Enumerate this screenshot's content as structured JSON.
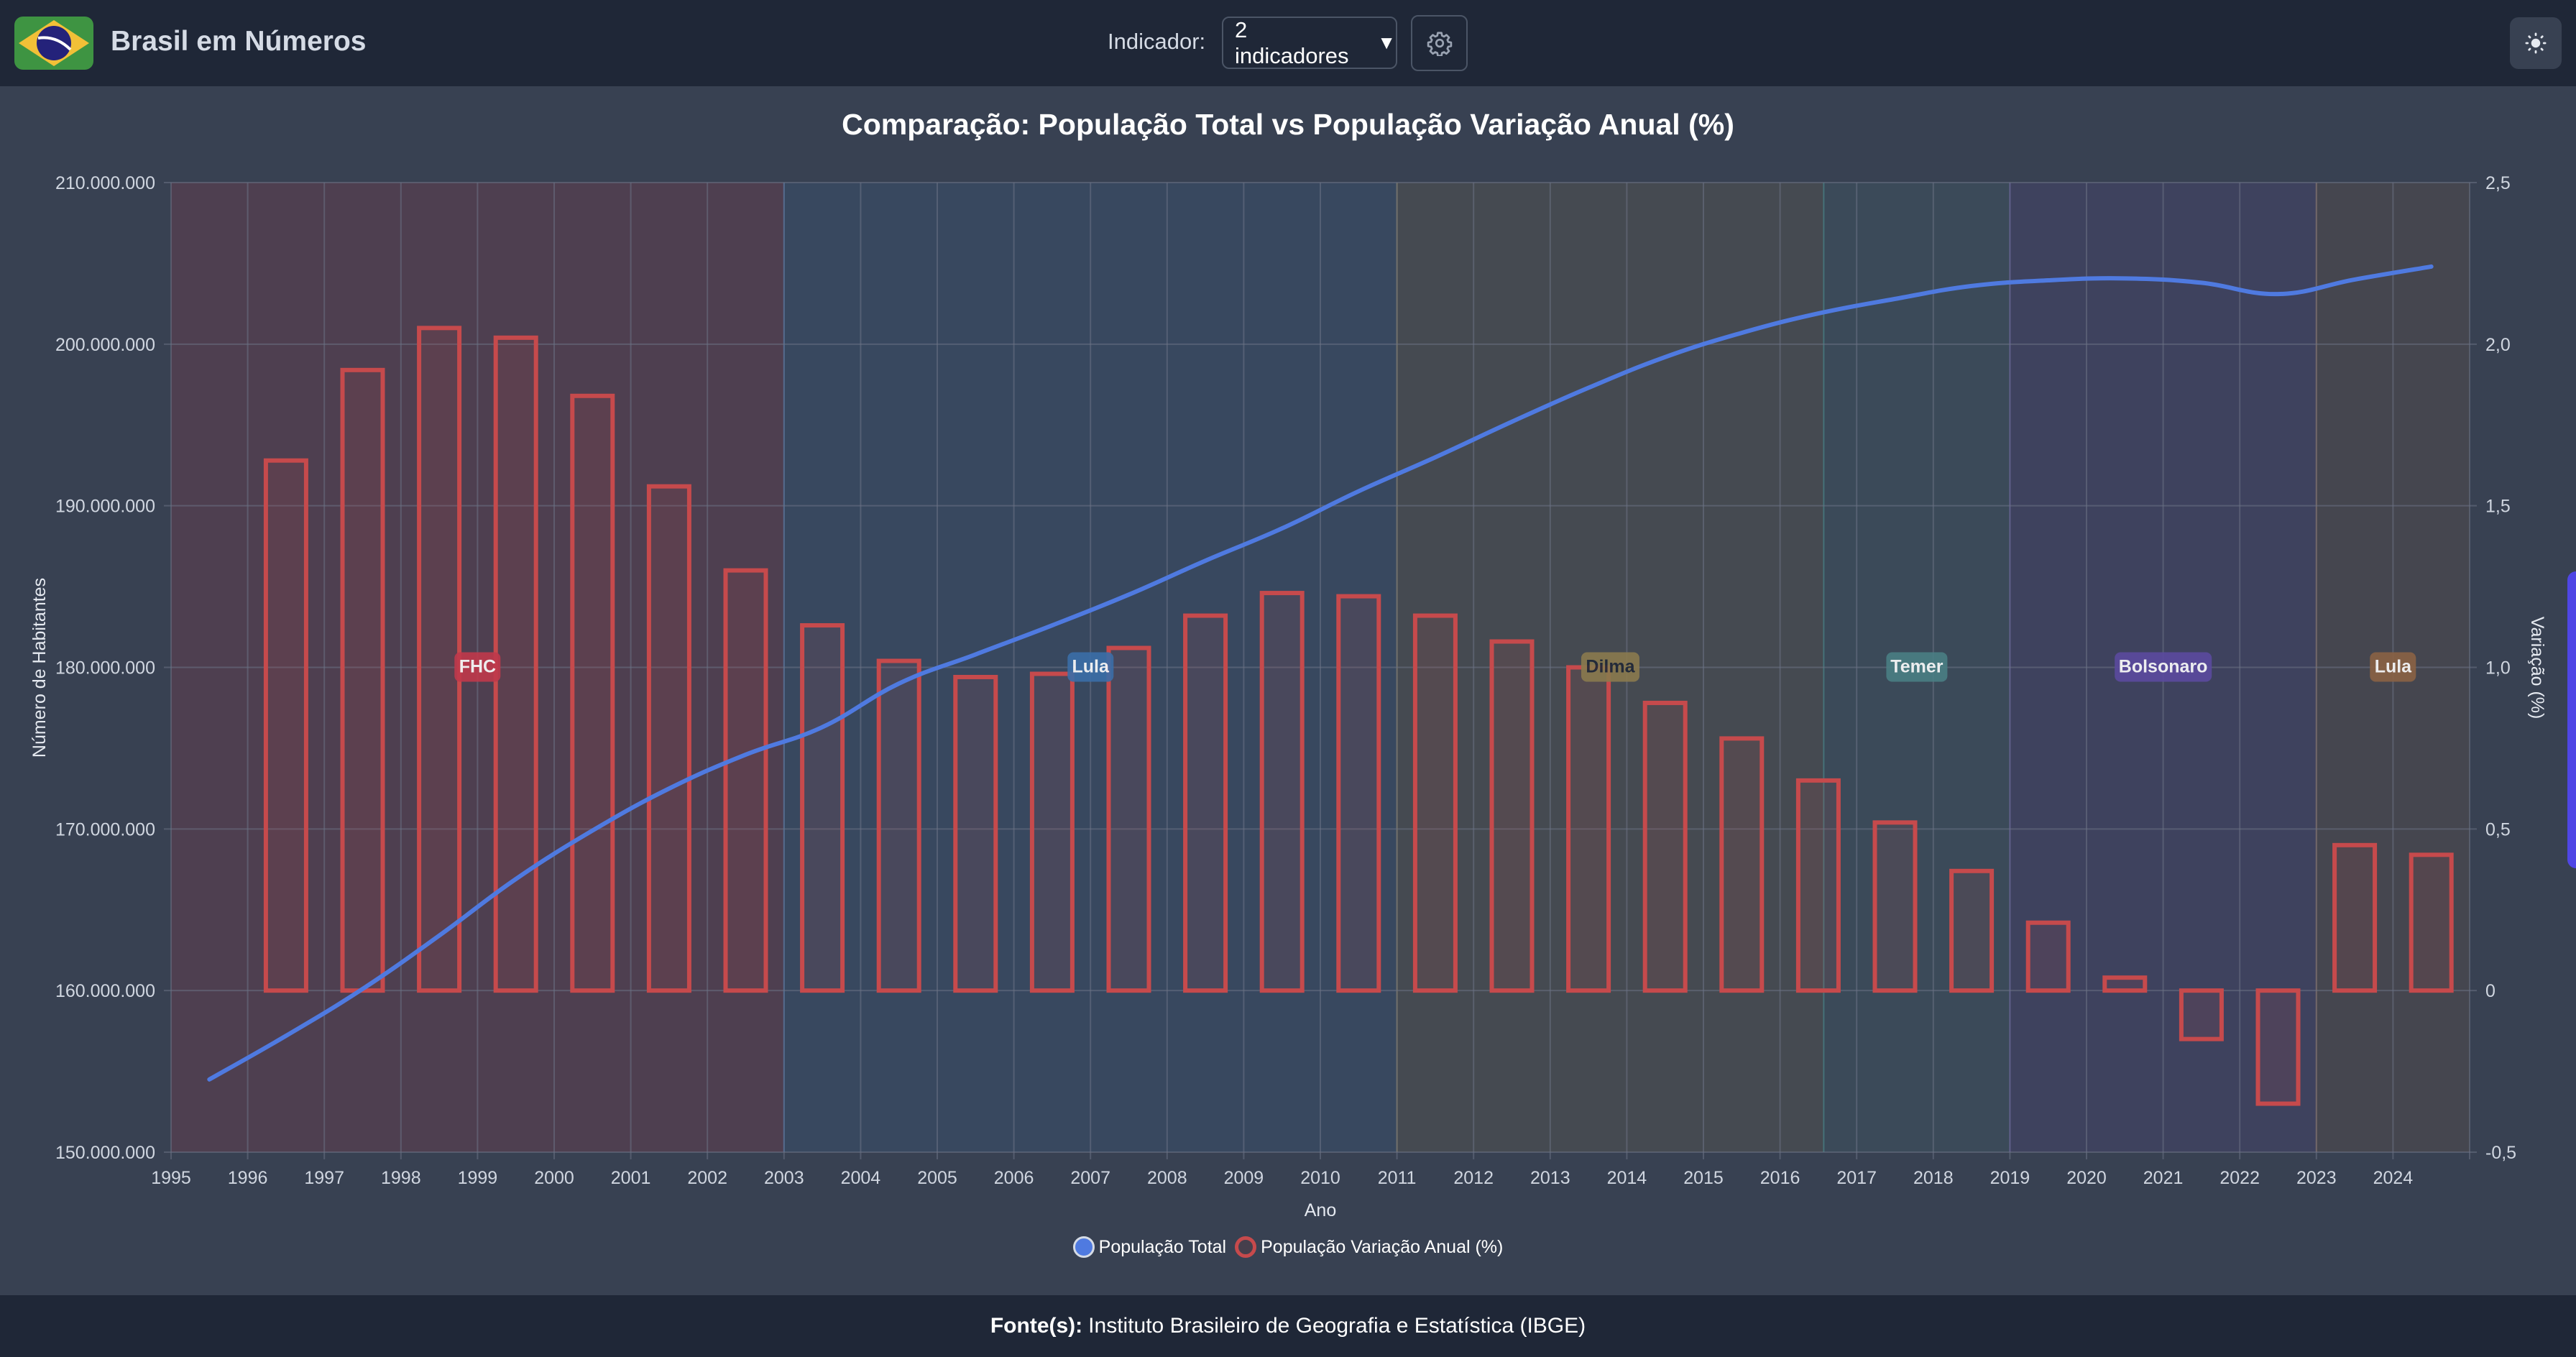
{
  "header": {
    "app_title": "Brasil em Números",
    "indicator_label": "Indicador:",
    "indicator_value": "2 indicadores",
    "indicator_caret": "▼",
    "icons": {
      "logo": "brazil-flag-icon",
      "settings": "gear-icon",
      "theme": "sun-icon"
    }
  },
  "footer": {
    "label": "Fonte(s):",
    "source": "Instituto Brasileiro de Geografia e Estatística (IBGE)"
  },
  "colors": {
    "line": "#4f7ae0",
    "bar": "#c64a4c",
    "fhc": "#c0394b",
    "lula": "#3b6ea8",
    "dilma": "#8a7a4e",
    "temer": "#4a7f84",
    "bolsonaro": "#5b4a9f",
    "lula2": "#8a6245"
  },
  "chart_data": {
    "type": "bar+line",
    "title": "Comparação: População Total vs População Variação Anual (%)",
    "xlabel": "Ano",
    "ylabel_left": "Número de Habitantes",
    "ylabel_right": "Variação (%)",
    "x_ticks": [
      "1995",
      "1996",
      "1997",
      "1998",
      "1999",
      "2000",
      "2001",
      "2002",
      "2003",
      "2004",
      "2005",
      "2006",
      "2007",
      "2008",
      "2009",
      "2010",
      "2011",
      "2012",
      "2013",
      "2014",
      "2015",
      "2016",
      "2017",
      "2018",
      "2019",
      "2020",
      "2021",
      "2022",
      "2023",
      "2024"
    ],
    "y_left_ticks": [
      "150.000.000",
      "160.000.000",
      "170.000.000",
      "180.000.000",
      "190.000.000",
      "200.000.000",
      "210.000.000"
    ],
    "y_left_range": [
      150000000,
      210000000
    ],
    "y_right_ticks": [
      "-0,5",
      "0",
      "0,5",
      "1,0",
      "1,5",
      "2,0",
      "2,5"
    ],
    "y_right_range": [
      -0.5,
      2.5
    ],
    "x_range": [
      1995,
      2025
    ],
    "grid": true,
    "legend_position": "bottom",
    "legend": [
      "População Total",
      "População Variação Anual (%)"
    ],
    "series": [
      {
        "name": "População Total",
        "type": "line",
        "axis": "left",
        "x": [
          1995,
          1996,
          1997,
          1998,
          1999,
          2000,
          2001,
          2002,
          2003,
          2004,
          2005,
          2006,
          2007,
          2008,
          2009,
          2010,
          2011,
          2012,
          2013,
          2014,
          2015,
          2016,
          2017,
          2018,
          2019,
          2020,
          2021,
          2022,
          2023,
          2024
        ],
        "values": [
          154500000,
          157200000,
          160100000,
          163400000,
          166900000,
          169900000,
          172500000,
          174600000,
          176300000,
          179000000,
          180800000,
          182600000,
          184500000,
          186600000,
          188600000,
          190900000,
          193000000,
          195200000,
          197300000,
          199200000,
          200700000,
          201900000,
          202800000,
          203600000,
          203950000,
          204070000,
          203800000,
          203100000,
          204000000,
          204800000
        ]
      },
      {
        "name": "População Variação Anual (%)",
        "type": "bar",
        "axis": "right",
        "x": [
          1996,
          1997,
          1998,
          1999,
          2000,
          2001,
          2002,
          2003,
          2004,
          2005,
          2006,
          2007,
          2008,
          2009,
          2010,
          2011,
          2012,
          2013,
          2014,
          2015,
          2016,
          2017,
          2018,
          2019,
          2020,
          2021,
          2022,
          2023,
          2024
        ],
        "values": [
          1.64,
          1.92,
          2.05,
          2.02,
          1.84,
          1.56,
          1.3,
          1.13,
          1.02,
          0.97,
          0.98,
          1.06,
          1.16,
          1.23,
          1.22,
          1.16,
          1.08,
          1.0,
          0.89,
          0.78,
          0.65,
          0.52,
          0.37,
          0.21,
          0.04,
          -0.15,
          -0.35,
          0.45,
          0.42
        ]
      }
    ],
    "periods": [
      {
        "label": "FHC",
        "start": 1995,
        "end": 2003,
        "color_key": "fhc",
        "text_dark": false
      },
      {
        "label": "Lula",
        "start": 2003,
        "end": 2011,
        "color_key": "lula",
        "text_dark": false
      },
      {
        "label": "Dilma",
        "start": 2011,
        "end": 2016.57,
        "color_key": "dilma",
        "text_dark": true
      },
      {
        "label": "Temer",
        "start": 2016.57,
        "end": 2019,
        "color_key": "temer",
        "text_dark": false
      },
      {
        "label": "Bolsonaro",
        "start": 2019,
        "end": 2023,
        "color_key": "bolsonaro",
        "text_dark": false
      },
      {
        "label": "Lula",
        "start": 2023,
        "end": 2025,
        "color_key": "lula2",
        "text_dark": false
      }
    ]
  }
}
